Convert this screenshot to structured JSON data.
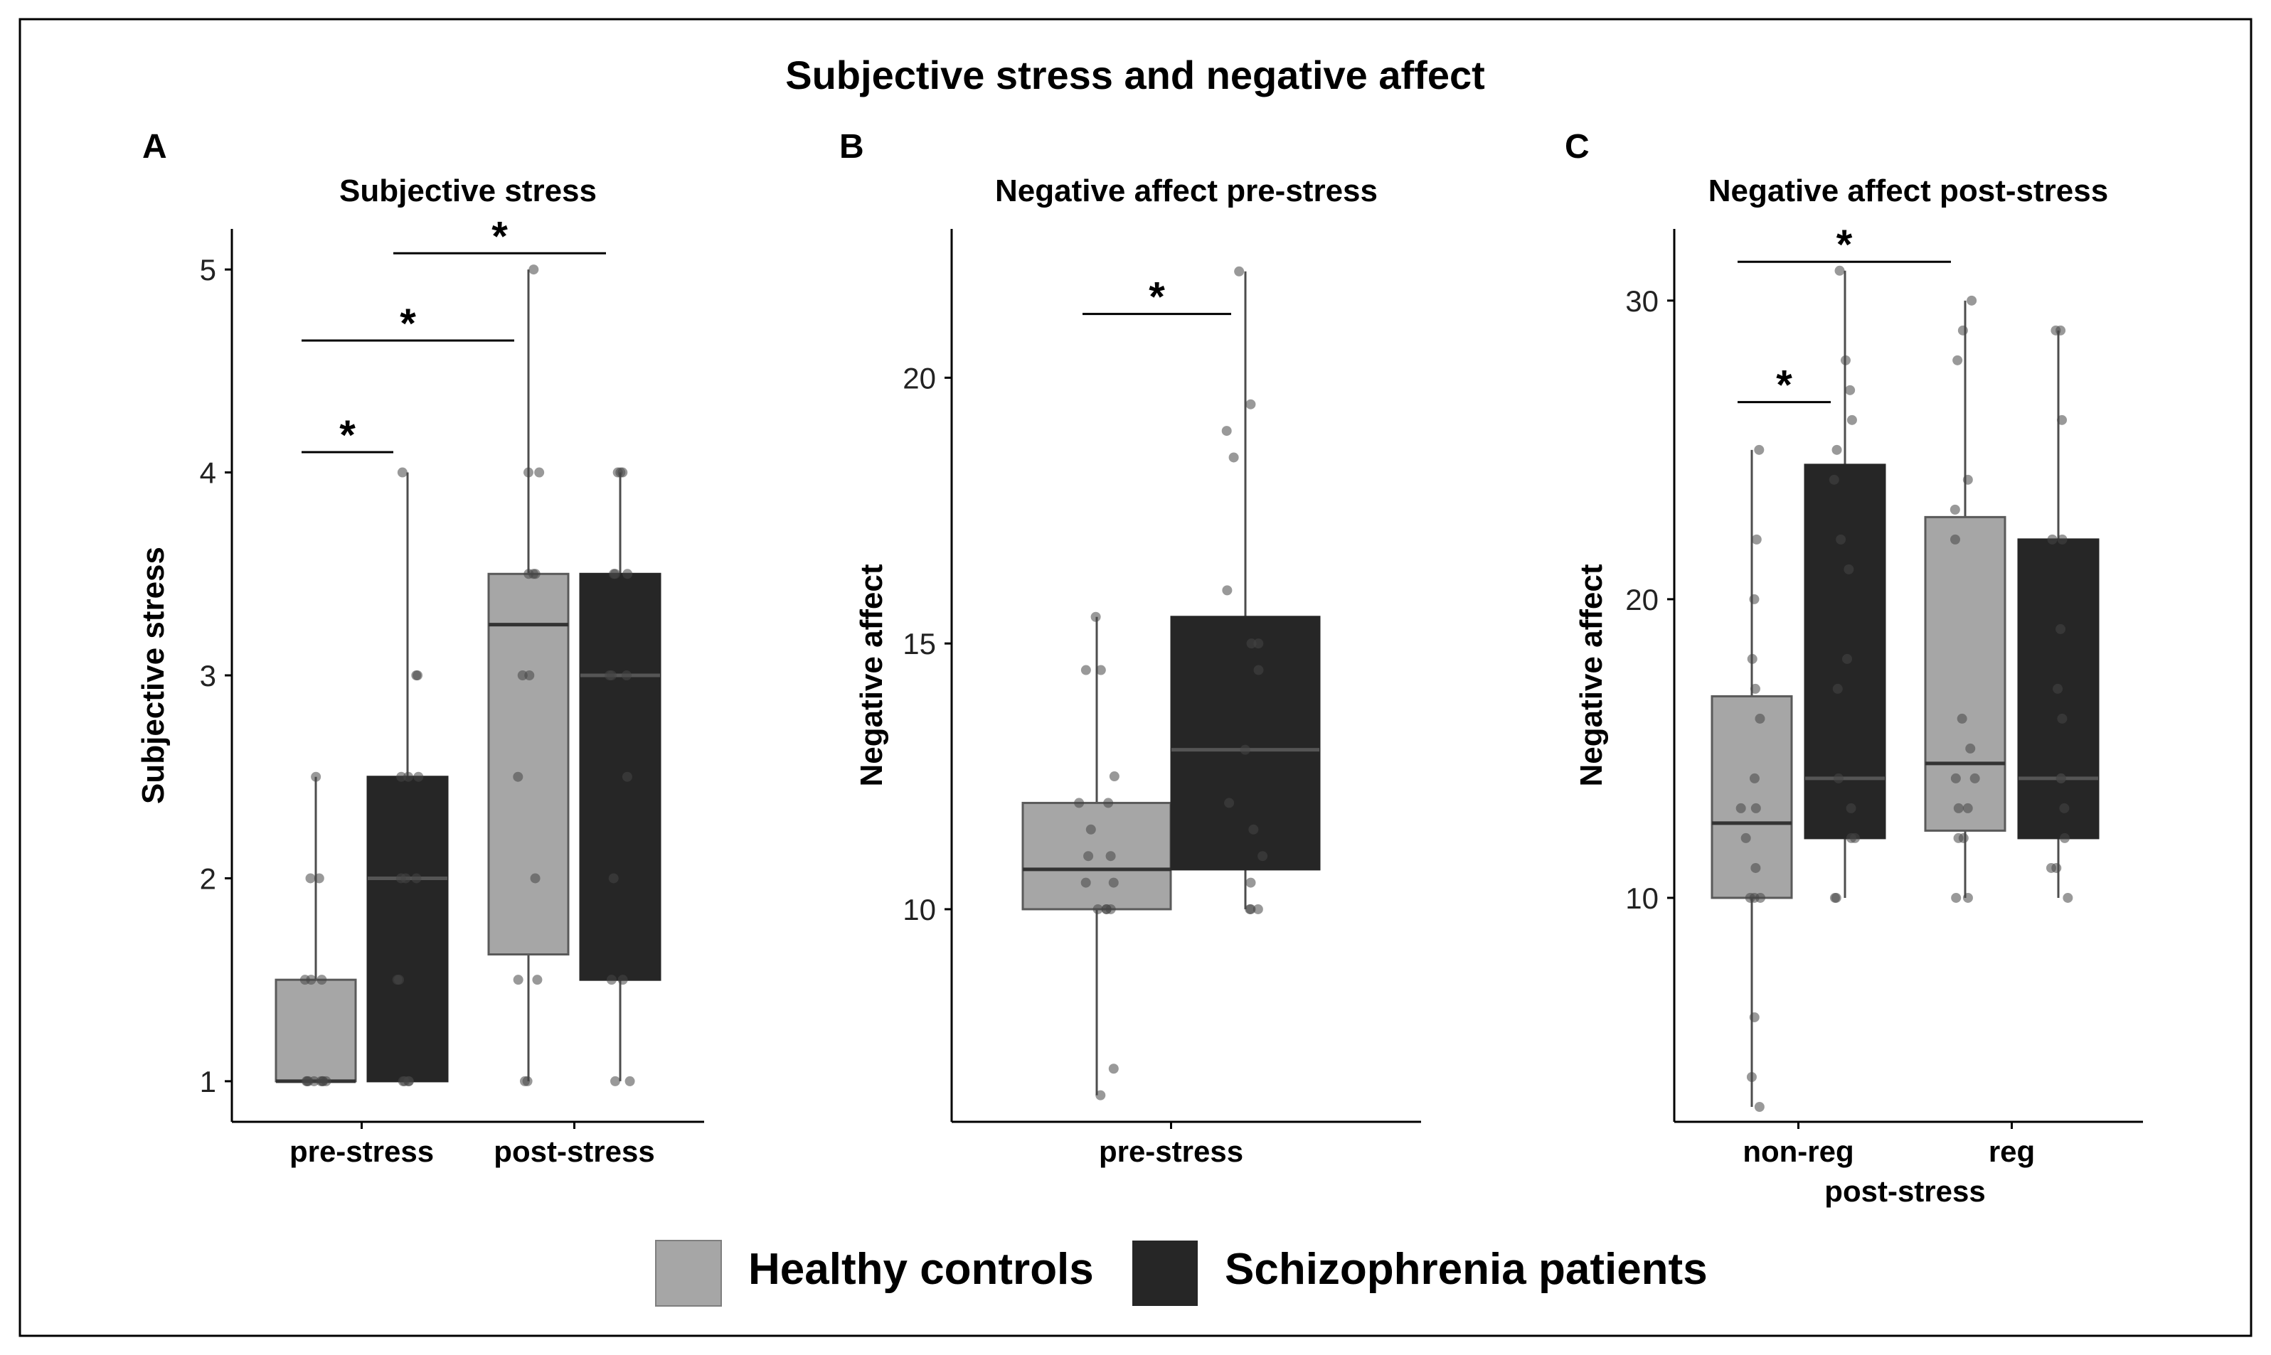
{
  "figure": {
    "title": "Subjective stress and negative affect",
    "legend": [
      {
        "label": "Healthy controls",
        "color": "#a6a6a6"
      },
      {
        "label": "Schizophrenia patients",
        "color": "#262626"
      }
    ],
    "colors": {
      "hc": "#a6a6a6",
      "sz": "#262626",
      "axis": "#000000",
      "whisker": "#4d4d4d"
    }
  },
  "chart_data": [
    {
      "panel": "A",
      "type": "box",
      "title": "Subjective stress",
      "ylabel": "Subjective stress",
      "ylim": [
        0.8,
        5.2
      ],
      "yticks": [
        "1",
        "2",
        "3",
        "4",
        "5"
      ],
      "x_groups": [
        "pre-stress",
        "post-stress"
      ],
      "x_sublabel": "",
      "boxes": [
        {
          "group": "pre-stress",
          "series": "Healthy controls",
          "min": 1,
          "q1": 1,
          "median": 1,
          "q3": 1.5,
          "max": 2.5,
          "points": [
            1,
            1,
            1,
            1,
            1,
            1,
            1,
            1,
            1.5,
            1.5,
            1.5,
            2,
            2,
            2.5
          ]
        },
        {
          "group": "pre-stress",
          "series": "Schizophrenia patients",
          "min": 1,
          "q1": 1,
          "median": 2,
          "q3": 2.5,
          "max": 4,
          "points": [
            1,
            1,
            1,
            1,
            1.5,
            1.5,
            2,
            2,
            2,
            2.5,
            2.5,
            2.5,
            3,
            3,
            4
          ]
        },
        {
          "group": "post-stress",
          "series": "Healthy controls",
          "min": 1,
          "q1": 1.625,
          "median": 3.25,
          "q3": 3.5,
          "max": 5,
          "points": [
            1,
            1,
            1.5,
            1.5,
            2,
            2.5,
            3,
            3,
            3.5,
            3.5,
            3.5,
            4,
            4,
            5
          ]
        },
        {
          "group": "post-stress",
          "series": "Schizophrenia patients",
          "min": 1,
          "q1": 1.5,
          "median": 3,
          "q3": 3.5,
          "max": 4,
          "points": [
            1,
            1,
            1.5,
            1.5,
            2,
            2.5,
            3,
            3,
            3,
            3.5,
            3.5,
            3.5,
            4,
            4,
            4
          ]
        }
      ],
      "significance": [
        {
          "from": 0,
          "to": 1,
          "y": 4.1,
          "label": "*"
        },
        {
          "from": 0,
          "to": 2,
          "y": 4.65,
          "label": "*"
        },
        {
          "from": 1,
          "to": 3,
          "y": 5.08,
          "label": "*"
        }
      ]
    },
    {
      "panel": "B",
      "type": "box",
      "title": "Negative affect pre-stress",
      "ylabel": "Negative affect",
      "ylim": [
        6.0,
        22.8
      ],
      "yticks": [
        "10",
        "15",
        "20"
      ],
      "x_groups": [
        "pre-stress"
      ],
      "x_sublabel": "",
      "boxes": [
        {
          "group": "pre-stress",
          "series": "Healthy controls",
          "min": 6.5,
          "q1": 10,
          "median": 10.75,
          "q3": 12,
          "max": 15.5,
          "points": [
            6.5,
            7,
            10,
            10,
            10,
            10,
            10.5,
            10.5,
            11,
            11,
            11.5,
            12,
            12,
            12.5,
            14.5,
            14.5,
            15.5
          ]
        },
        {
          "group": "pre-stress",
          "series": "Schizophrenia patients",
          "min": 10,
          "q1": 10.75,
          "median": 13,
          "q3": 15.5,
          "max": 22,
          "points": [
            10,
            10,
            10,
            10.5,
            11,
            11.5,
            12,
            13,
            14.5,
            15,
            15,
            16,
            18.5,
            19,
            19.5,
            22
          ]
        }
      ],
      "significance": [
        {
          "from": 0,
          "to": 1,
          "y": 21.2,
          "label": "*"
        }
      ]
    },
    {
      "panel": "C",
      "type": "box",
      "title": "Negative affect post-stress",
      "ylabel": "Negative affect",
      "ylim": [
        2.5,
        32.4
      ],
      "yticks": [
        "10",
        "20",
        "30"
      ],
      "x_groups": [
        "non-reg",
        "reg"
      ],
      "x_sublabel": "post-stress",
      "boxes": [
        {
          "group": "non-reg",
          "series": "Healthy controls",
          "min": 3,
          "q1": 10,
          "median": 12.5,
          "q3": 16.75,
          "max": 25,
          "points": [
            3,
            4,
            6,
            10,
            10,
            10,
            11,
            12,
            13,
            13,
            14,
            16,
            17,
            18,
            20,
            22,
            25
          ]
        },
        {
          "group": "non-reg",
          "series": "Schizophrenia patients",
          "min": 10,
          "q1": 12,
          "median": 14,
          "q3": 24.5,
          "max": 31,
          "points": [
            10,
            10,
            12,
            12,
            13,
            14,
            17,
            18,
            21,
            22,
            24,
            25,
            26,
            27,
            28,
            31
          ]
        },
        {
          "group": "reg",
          "series": "Healthy controls",
          "min": 10,
          "q1": 12.25,
          "median": 14.5,
          "q3": 22.75,
          "max": 30,
          "points": [
            10,
            10,
            12,
            12,
            13,
            13,
            14,
            14,
            15,
            16,
            22,
            23,
            24,
            28,
            29,
            30
          ]
        },
        {
          "group": "reg",
          "series": "Schizophrenia patients",
          "min": 10,
          "q1": 12,
          "median": 14,
          "q3": 22,
          "max": 29,
          "points": [
            10,
            11,
            11,
            12,
            13,
            14,
            14,
            16,
            17,
            19,
            22,
            22,
            26,
            29,
            29
          ]
        }
      ],
      "significance": [
        {
          "from": 0,
          "to": 1,
          "y": 26.6,
          "label": "*"
        },
        {
          "from": 0,
          "to": 2,
          "y": 31.3,
          "label": "*"
        }
      ]
    }
  ]
}
